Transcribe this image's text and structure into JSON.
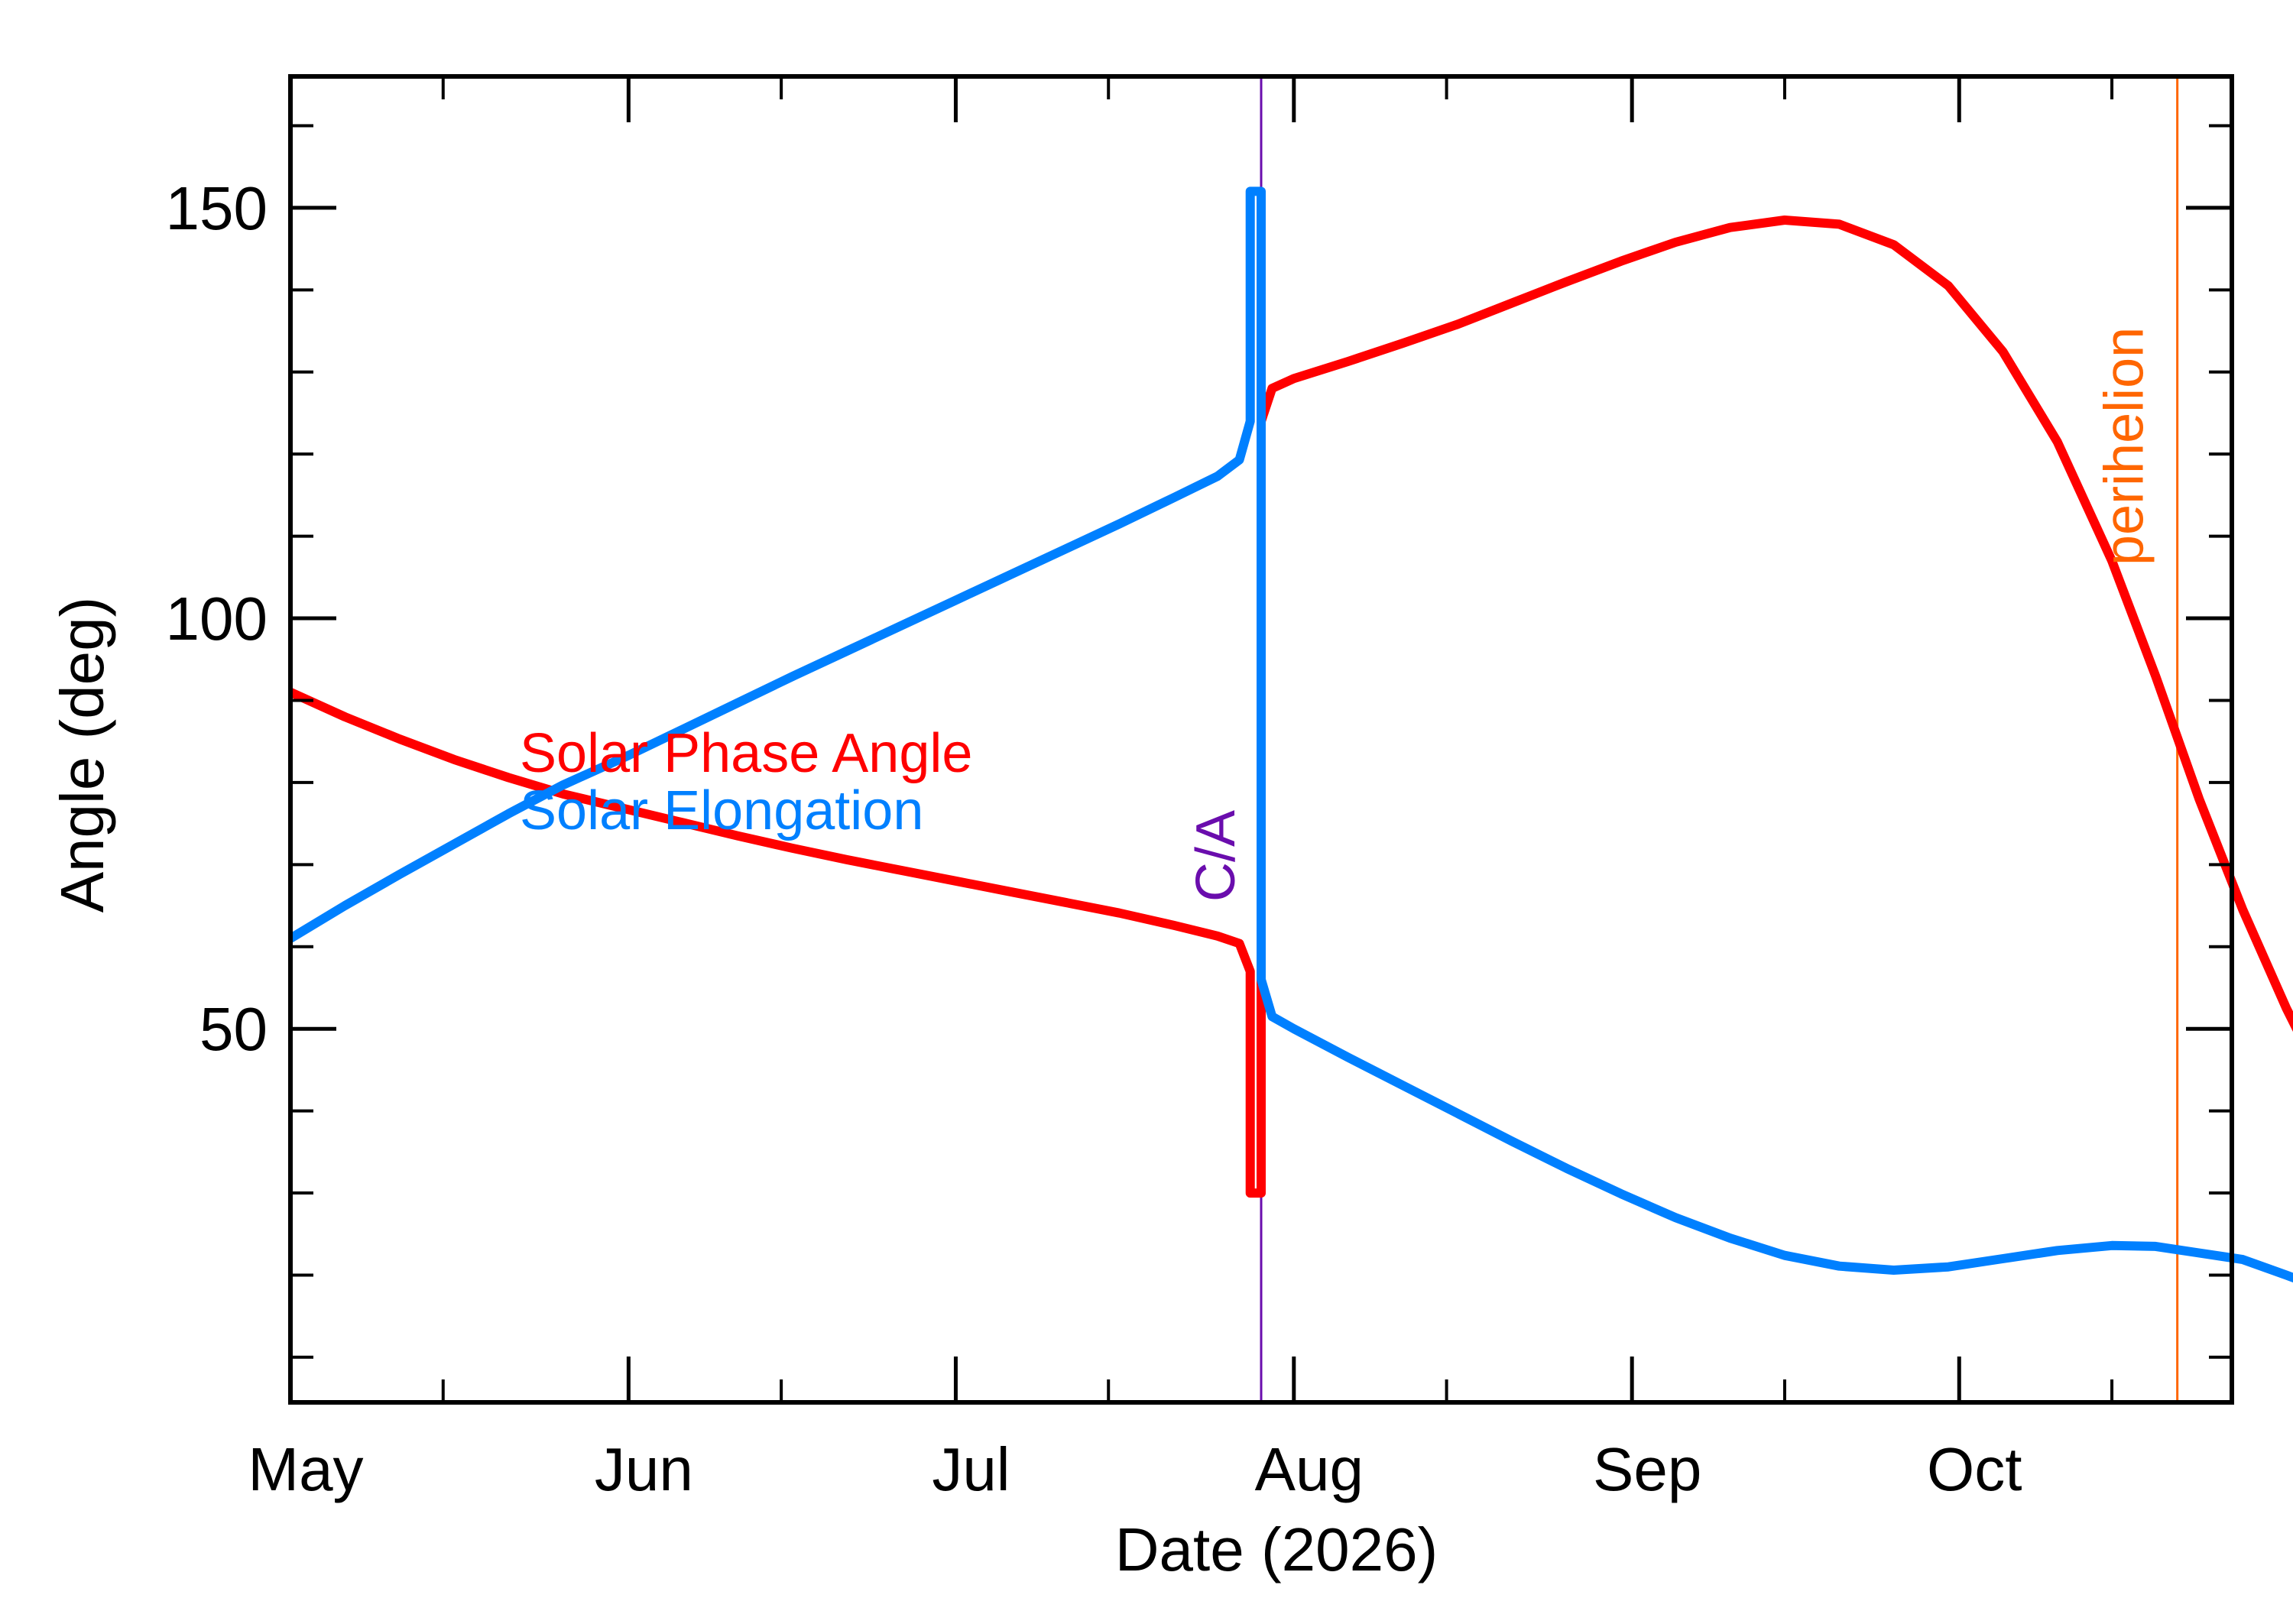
{
  "chart_data": {
    "type": "line",
    "title": "",
    "xlabel": "Date (2026)",
    "ylabel": "Angle (deg)",
    "xlim": [
      "2026-05-01",
      "2026-10-26"
    ],
    "ylim": [
      4.5,
      166
    ],
    "x_ticks": [
      {
        "date": "2026-05-01",
        "label": "May"
      },
      {
        "date": "2026-06-01",
        "label": "Jun"
      },
      {
        "date": "2026-07-01",
        "label": "Jul"
      },
      {
        "date": "2026-08-01",
        "label": "Aug"
      },
      {
        "date": "2026-09-01",
        "label": "Sep"
      },
      {
        "date": "2026-10-01",
        "label": "Oct"
      }
    ],
    "y_ticks": [
      50,
      100,
      150
    ],
    "legend_position": "center-left",
    "grid": false,
    "series": [
      {
        "name": "Solar Phase Angle",
        "color": "#ff0000",
        "points": [
          [
            "2026-05-01",
            91.0
          ],
          [
            "2026-05-06",
            88.0
          ],
          [
            "2026-05-11",
            85.3
          ],
          [
            "2026-05-16",
            82.8
          ],
          [
            "2026-05-21",
            80.6
          ],
          [
            "2026-05-26",
            78.6
          ],
          [
            "2026-06-01",
            76.7
          ],
          [
            "2026-06-06",
            75.1
          ],
          [
            "2026-06-11",
            73.5
          ],
          [
            "2026-06-16",
            72.0
          ],
          [
            "2026-06-21",
            70.6
          ],
          [
            "2026-06-26",
            69.3
          ],
          [
            "2026-07-01",
            68.0
          ],
          [
            "2026-07-06",
            66.7
          ],
          [
            "2026-07-11",
            65.4
          ],
          [
            "2026-07-16",
            64.1
          ],
          [
            "2026-07-21",
            62.6
          ],
          [
            "2026-07-25",
            61.3
          ],
          [
            "2026-07-27",
            60.4
          ],
          [
            "2026-07-28",
            57.0
          ],
          [
            "2026-07-28",
            30.0
          ],
          [
            "2026-07-29",
            30.0
          ],
          [
            "2026-07-29",
            124.0
          ],
          [
            "2026-07-30",
            128.0
          ],
          [
            "2026-08-01",
            129.2
          ],
          [
            "2026-08-06",
            131.3
          ],
          [
            "2026-08-11",
            133.5
          ],
          [
            "2026-08-16",
            135.8
          ],
          [
            "2026-08-21",
            138.4
          ],
          [
            "2026-08-26",
            141.0
          ],
          [
            "2026-08-31",
            143.5
          ],
          [
            "2026-09-05",
            145.8
          ],
          [
            "2026-09-10",
            147.6
          ],
          [
            "2026-09-15",
            148.5
          ],
          [
            "2026-09-20",
            148.0
          ],
          [
            "2026-09-25",
            145.5
          ],
          [
            "2026-09-30",
            140.5
          ],
          [
            "2026-10-05",
            132.5
          ],
          [
            "2026-10-10",
            121.5
          ],
          [
            "2026-10-15",
            107.0
          ],
          [
            "2026-10-19",
            93.0
          ],
          [
            "2026-10-23",
            78.0
          ],
          [
            "2026-10-27",
            64.5
          ],
          [
            "2026-10-31",
            52.5
          ],
          [
            "2026-11-03",
            44.5
          ]
        ]
      },
      {
        "name": "Solar Elongation",
        "color": "#0080ff",
        "points": [
          [
            "2026-05-01",
            61.0
          ],
          [
            "2026-05-06",
            65.0
          ],
          [
            "2026-05-11",
            68.8
          ],
          [
            "2026-05-16",
            72.5
          ],
          [
            "2026-05-21",
            76.2
          ],
          [
            "2026-05-26",
            79.7
          ],
          [
            "2026-06-01",
            83.3
          ],
          [
            "2026-06-06",
            86.5
          ],
          [
            "2026-06-11",
            89.7
          ],
          [
            "2026-06-16",
            92.9
          ],
          [
            "2026-06-21",
            96.0
          ],
          [
            "2026-06-26",
            99.1
          ],
          [
            "2026-07-01",
            102.2
          ],
          [
            "2026-07-06",
            105.3
          ],
          [
            "2026-07-11",
            108.4
          ],
          [
            "2026-07-16",
            111.5
          ],
          [
            "2026-07-21",
            114.7
          ],
          [
            "2026-07-25",
            117.3
          ],
          [
            "2026-07-27",
            119.3
          ],
          [
            "2026-07-28",
            124.0
          ],
          [
            "2026-07-28",
            152.0
          ],
          [
            "2026-07-29",
            152.0
          ],
          [
            "2026-07-29",
            56.0
          ],
          [
            "2026-07-30",
            51.5
          ],
          [
            "2026-08-01",
            50.0
          ],
          [
            "2026-08-06",
            46.5
          ],
          [
            "2026-08-11",
            43.1
          ],
          [
            "2026-08-16",
            39.7
          ],
          [
            "2026-08-21",
            36.3
          ],
          [
            "2026-08-26",
            33.0
          ],
          [
            "2026-08-31",
            29.9
          ],
          [
            "2026-09-05",
            27.0
          ],
          [
            "2026-09-10",
            24.5
          ],
          [
            "2026-09-15",
            22.4
          ],
          [
            "2026-09-20",
            21.1
          ],
          [
            "2026-09-25",
            20.6
          ],
          [
            "2026-09-30",
            21.0
          ],
          [
            "2026-10-05",
            22.0
          ],
          [
            "2026-10-10",
            23.0
          ],
          [
            "2026-10-15",
            23.6
          ],
          [
            "2026-10-19",
            23.5
          ],
          [
            "2026-10-23",
            22.7
          ],
          [
            "2026-10-27",
            21.9
          ],
          [
            "2026-10-31",
            20.0
          ],
          [
            "2026-11-03",
            18.5
          ]
        ]
      }
    ],
    "vertical_markers": [
      {
        "label": "C/A",
        "date": "2026-07-29",
        "color": "#6a0dad"
      },
      {
        "label": "perihelion",
        "date": "2026-10-21",
        "color": "#ff6600"
      }
    ]
  }
}
